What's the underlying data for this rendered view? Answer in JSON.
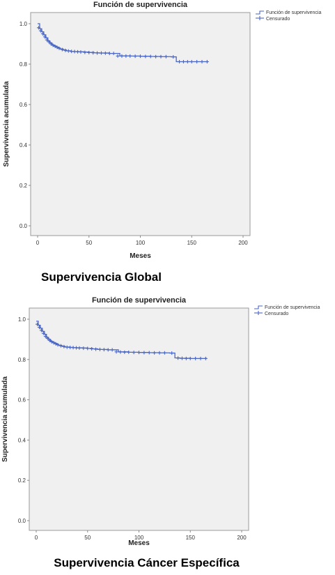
{
  "colors": {
    "curve": "#4a66c4",
    "plot_bg": "#f0f0f0",
    "axis": "#9a9a9a"
  },
  "chart_data": [
    {
      "type": "line",
      "title": "Función de supervivencia",
      "xlabel": "Meses",
      "ylabel": "Supervivencia acumulada",
      "xlim": [
        0,
        200
      ],
      "ylim": [
        0,
        1.0
      ],
      "xticks": [
        "0",
        "50",
        "100",
        "150",
        "200"
      ],
      "yticks": [
        "0.0",
        "0.2",
        "0.4",
        "0.6",
        "0.8",
        "1.0"
      ],
      "legend": {
        "position": "top-right",
        "entries": [
          "Función de supervivencia",
          "Censurado"
        ]
      },
      "series": [
        {
          "name": "Función de supervivencia",
          "x": [
            0,
            2,
            4,
            6,
            8,
            10,
            12,
            14,
            16,
            18,
            20,
            22,
            25,
            28,
            32,
            36,
            40,
            45,
            50,
            55,
            60,
            70,
            80,
            90,
            100,
            110,
            120,
            130,
            135,
            140,
            150,
            160,
            166
          ],
          "y": [
            1.0,
            0.975,
            0.96,
            0.945,
            0.93,
            0.915,
            0.905,
            0.895,
            0.89,
            0.885,
            0.88,
            0.875,
            0.87,
            0.866,
            0.863,
            0.862,
            0.861,
            0.86,
            0.858,
            0.856,
            0.855,
            0.853,
            0.841,
            0.84,
            0.839,
            0.838,
            0.837,
            0.836,
            0.812,
            0.812,
            0.812,
            0.812,
            0.812
          ]
        },
        {
          "name": "Censurado",
          "x": [
            1,
            3,
            5,
            7,
            9,
            11,
            13,
            15,
            17,
            19,
            21,
            24,
            27,
            30,
            33,
            36,
            39,
            42,
            46,
            50,
            54,
            58,
            62,
            66,
            70,
            74,
            78,
            82,
            86,
            90,
            95,
            100,
            105,
            110,
            115,
            120,
            125,
            132,
            138,
            142,
            146,
            150,
            155,
            160,
            165
          ],
          "y": [
            0.98,
            0.965,
            0.95,
            0.935,
            0.92,
            0.91,
            0.9,
            0.893,
            0.888,
            0.883,
            0.878,
            0.872,
            0.868,
            0.865,
            0.863,
            0.862,
            0.861,
            0.86,
            0.858,
            0.857,
            0.856,
            0.855,
            0.855,
            0.854,
            0.853,
            0.853,
            0.84,
            0.84,
            0.84,
            0.84,
            0.839,
            0.839,
            0.838,
            0.838,
            0.837,
            0.837,
            0.837,
            0.836,
            0.812,
            0.812,
            0.812,
            0.812,
            0.812,
            0.812,
            0.812
          ]
        }
      ],
      "caption": "Supervivencia Global"
    },
    {
      "type": "line",
      "title": "Función de supervivencia",
      "xlabel": "Meses",
      "ylabel": "Supervivencia acumulada",
      "xlim": [
        0,
        200
      ],
      "ylim": [
        0,
        1.0
      ],
      "xticks": [
        "0",
        "50",
        "100",
        "150",
        "200"
      ],
      "yticks": [
        "0.0",
        "0.2",
        "0.4",
        "0.6",
        "0.8",
        "1.0"
      ],
      "legend": {
        "position": "top-right",
        "entries": [
          "Función de supervivencia",
          "Censurado"
        ]
      },
      "series": [
        {
          "name": "Función de supervivencia",
          "x": [
            0,
            2,
            4,
            6,
            8,
            10,
            12,
            14,
            16,
            18,
            20,
            22,
            25,
            28,
            32,
            36,
            40,
            45,
            50,
            55,
            60,
            70,
            80,
            90,
            100,
            110,
            120,
            130,
            135,
            140,
            150,
            160,
            166
          ],
          "y": [
            0.99,
            0.97,
            0.955,
            0.94,
            0.925,
            0.91,
            0.9,
            0.89,
            0.885,
            0.88,
            0.875,
            0.87,
            0.866,
            0.862,
            0.86,
            0.859,
            0.858,
            0.857,
            0.855,
            0.853,
            0.85,
            0.848,
            0.838,
            0.836,
            0.835,
            0.834,
            0.833,
            0.832,
            0.808,
            0.806,
            0.805,
            0.805,
            0.805
          ]
        },
        {
          "name": "Censurado",
          "x": [
            1,
            3,
            5,
            7,
            9,
            11,
            13,
            15,
            17,
            19,
            21,
            24,
            27,
            30,
            33,
            36,
            39,
            42,
            46,
            50,
            54,
            58,
            62,
            66,
            70,
            74,
            78,
            82,
            86,
            90,
            95,
            100,
            105,
            110,
            115,
            120,
            125,
            132,
            138,
            142,
            146,
            150,
            155,
            160,
            165
          ],
          "y": [
            0.975,
            0.96,
            0.945,
            0.93,
            0.915,
            0.905,
            0.895,
            0.888,
            0.883,
            0.878,
            0.873,
            0.868,
            0.864,
            0.861,
            0.86,
            0.859,
            0.858,
            0.857,
            0.856,
            0.855,
            0.853,
            0.851,
            0.85,
            0.849,
            0.848,
            0.848,
            0.838,
            0.837,
            0.836,
            0.836,
            0.835,
            0.835,
            0.834,
            0.834,
            0.833,
            0.833,
            0.833,
            0.832,
            0.807,
            0.806,
            0.805,
            0.805,
            0.805,
            0.805,
            0.805
          ]
        }
      ],
      "caption": "Supervivencia Cáncer Específica"
    }
  ]
}
